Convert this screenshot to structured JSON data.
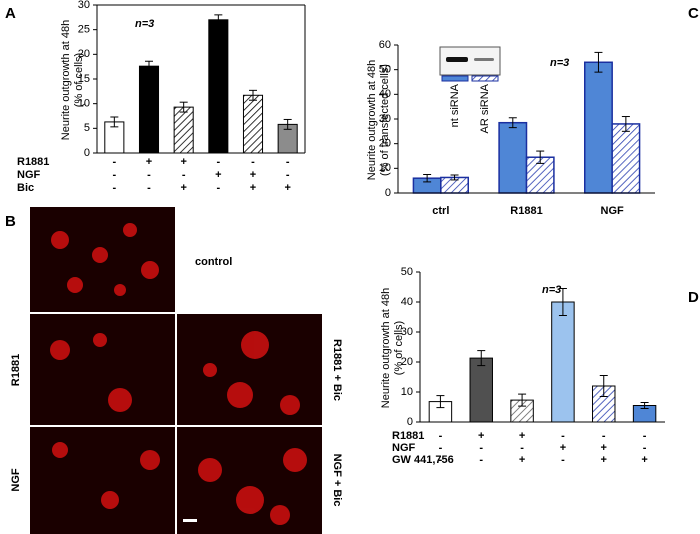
{
  "chart_data": [
    {
      "type": "bar",
      "panel_label": "A",
      "annotation": "n=3",
      "ylabel": [
        "Neurite outgrowth at 48h",
        "(% of cells)"
      ],
      "values": [
        6.3,
        17.6,
        9.3,
        27,
        11.7,
        5.8
      ],
      "errors": [
        1,
        1,
        1,
        1,
        1,
        1
      ],
      "colors": [
        "#ffffff",
        "#000000",
        "#000000",
        "#000000",
        "#000000",
        "#8c8c8c"
      ],
      "hatched": [
        false,
        false,
        true,
        false,
        true,
        false
      ],
      "ylim": [
        0,
        30
      ],
      "yticks": [
        0,
        5,
        10,
        15,
        20,
        25,
        30
      ],
      "treatments": [
        {
          "name": "R1881",
          "signs": [
            "-",
            "+",
            "+",
            "-",
            "-",
            "-"
          ]
        },
        {
          "name": "NGF",
          "signs": [
            "-",
            "-",
            "-",
            "+",
            "+",
            "-"
          ]
        },
        {
          "name": "Bic",
          "signs": [
            "-",
            "-",
            "+",
            "-",
            "+",
            "+"
          ]
        }
      ]
    },
    {
      "type": "grouped-bar",
      "panel_label": "C",
      "annotation": "n=3",
      "ylabel": [
        "Neurite outgrowth at 48h",
        "(% of transfected cells)"
      ],
      "categories": [
        "ctrl",
        "R1881",
        "NGF"
      ],
      "series": [
        {
          "name": "nt siRNA",
          "color": "#4f86d6",
          "hatched": false,
          "values": [
            6,
            28.5,
            53
          ],
          "errors": [
            1.5,
            2,
            4
          ]
        },
        {
          "name": "AR siRNA",
          "color": "#2a3fb0",
          "hatched": true,
          "values": [
            6.3,
            14.5,
            28
          ],
          "errors": [
            1,
            2.5,
            3
          ]
        }
      ],
      "ylim": [
        0,
        60
      ],
      "yticks": [
        0,
        10,
        20,
        30,
        40,
        50,
        60
      ]
    },
    {
      "type": "bar",
      "panel_label": "D",
      "annotation": "n=3",
      "ylabel": [
        "Neurite outgrowth at 48h",
        "(% of cells)"
      ],
      "values": [
        6.8,
        21.3,
        7.3,
        40,
        12,
        5.5
      ],
      "errors": [
        2,
        2.5,
        2,
        4.5,
        3.5,
        1
      ],
      "colors": [
        "#ffffff",
        "#505050",
        "#606060",
        "#9cc3ee",
        "#2a3fb0",
        "#4f86d6"
      ],
      "hatched": [
        false,
        false,
        true,
        false,
        true,
        false
      ],
      "ylim": [
        0,
        50
      ],
      "yticks": [
        0,
        10,
        20,
        30,
        40,
        50
      ],
      "treatments": [
        {
          "name": "R1881",
          "signs": [
            "-",
            "+",
            "+",
            "-",
            "-",
            "-"
          ]
        },
        {
          "name": "NGF",
          "signs": [
            "-",
            "-",
            "-",
            "+",
            "+",
            "-"
          ]
        },
        {
          "name": "GW 441,756",
          "signs": [
            "-",
            "-",
            "+",
            "-",
            "+",
            "+"
          ]
        }
      ]
    }
  ],
  "panel_b": {
    "label": "B",
    "images": [
      "control",
      "R1881",
      "R1881 + Bic",
      "NGF",
      "NGF + Bic"
    ]
  }
}
